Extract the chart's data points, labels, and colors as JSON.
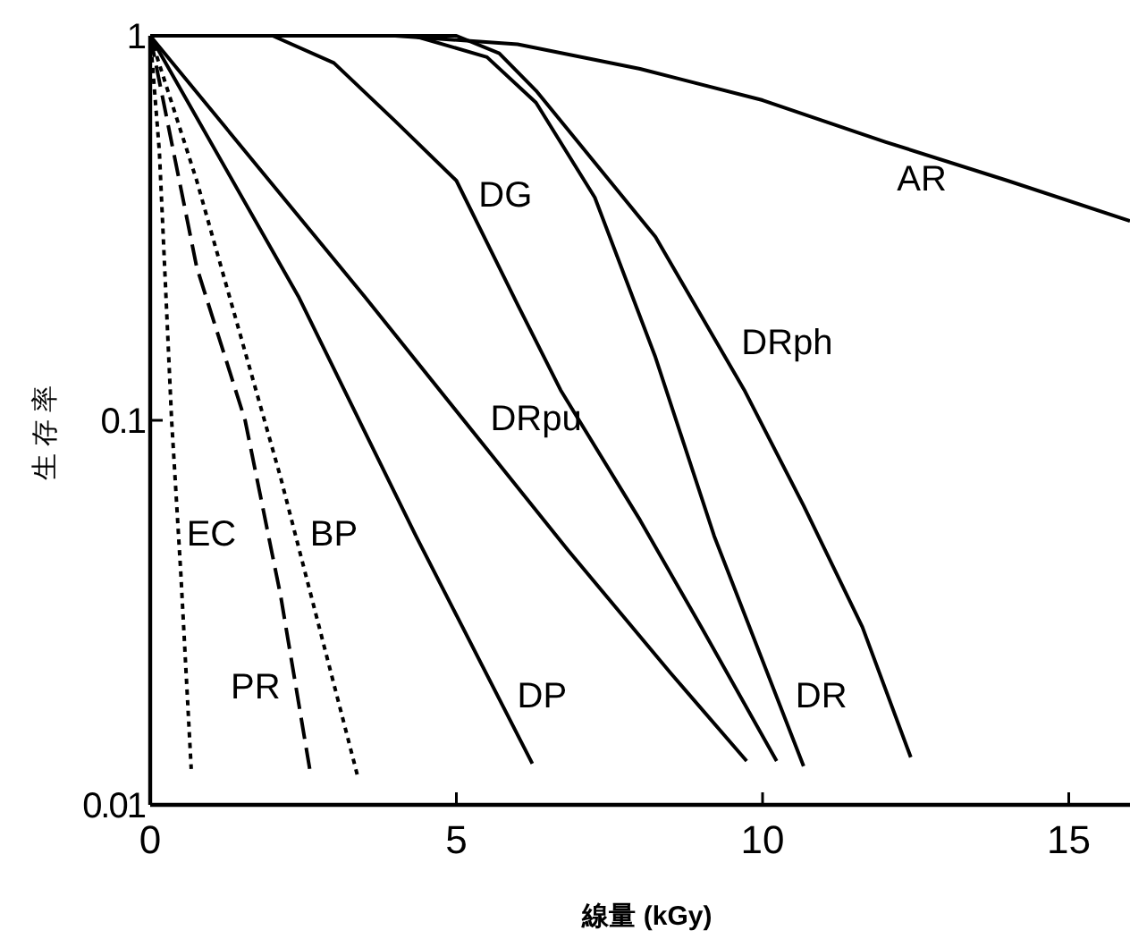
{
  "chart_data": {
    "type": "line",
    "xlabel": "線量 (kGy)",
    "ylabel": "生存率",
    "log": "y",
    "grid": false,
    "marker": "none",
    "xlim": [
      0,
      16
    ],
    "ylim": [
      0.01,
      1
    ],
    "xticks": [
      0,
      5,
      10,
      15
    ],
    "yticks": [
      1,
      0.1,
      0.01
    ],
    "series": [
      {
        "name": "AR",
        "color": "#000000",
        "line_style": "solid",
        "x": [
          0,
          4,
          6,
          8,
          10,
          12,
          14,
          16
        ],
        "values": [
          1,
          1,
          0.95,
          0.82,
          0.68,
          0.53,
          0.42,
          0.33
        ]
      },
      {
        "name": "DG",
        "color": "#000000",
        "line_style": "solid",
        "x": [
          0,
          2,
          3,
          4,
          5,
          6,
          6.7,
          8,
          9,
          10.23
        ],
        "values": [
          1,
          1,
          0.85,
          0.6,
          0.42,
          0.2,
          0.12,
          0.055,
          0.029,
          0.013
        ]
      },
      {
        "name": "DR",
        "color": "#000000",
        "line_style": "solid",
        "x": [
          0,
          4.3,
          5.5,
          6.3,
          7.26,
          8.25,
          9.21,
          10.67
        ],
        "values": [
          1,
          1,
          0.88,
          0.67,
          0.38,
          0.146,
          0.05,
          0.0126
        ]
      },
      {
        "name": "DRph",
        "color": "#000000",
        "line_style": "solid",
        "x": [
          0,
          5,
          5.7,
          6.3,
          8.25,
          9.7,
          10.67,
          11.63,
          12.42
        ],
        "values": [
          1,
          1,
          0.9,
          0.72,
          0.3,
          0.12,
          0.06,
          0.029,
          0.0133
        ]
      },
      {
        "name": "DRpu",
        "color": "#000000",
        "line_style": "solid",
        "x": [
          0,
          3.5,
          6.82,
          8.5,
          9.74
        ],
        "values": [
          1,
          0.21,
          0.046,
          0.022,
          0.013
        ]
      },
      {
        "name": "DP",
        "color": "#000000",
        "line_style": "solid",
        "x": [
          0,
          2.42,
          4.34,
          6.24
        ],
        "values": [
          1,
          0.21,
          0.05,
          0.0128
        ]
      },
      {
        "name": "EC",
        "color": "#000000",
        "line_style": "dotted",
        "x": [
          0,
          0.15,
          0.35,
          0.5,
          0.67
        ],
        "values": [
          1,
          0.5,
          0.1,
          0.04,
          0.0124
        ]
      },
      {
        "name": "PR",
        "color": "#000000",
        "line_style": "dashed",
        "x": [
          0,
          0.76,
          1.55,
          2.13,
          2.62
        ],
        "values": [
          1,
          0.25,
          0.1,
          0.035,
          0.012
        ]
      },
      {
        "name": "BP",
        "color": "#000000",
        "line_style": "dotted",
        "x": [
          0,
          0.76,
          2.13,
          3.38
        ],
        "values": [
          1,
          0.42,
          0.071,
          0.012
        ]
      }
    ]
  }
}
